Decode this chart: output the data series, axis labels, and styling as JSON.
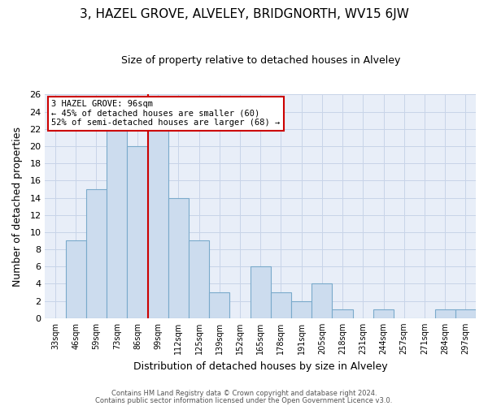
{
  "title": "3, HAZEL GROVE, ALVELEY, BRIDGNORTH, WV15 6JW",
  "subtitle": "Size of property relative to detached houses in Alveley",
  "xlabel": "Distribution of detached houses by size in Alveley",
  "ylabel": "Number of detached properties",
  "categories": [
    "33sqm",
    "46sqm",
    "59sqm",
    "73sqm",
    "86sqm",
    "99sqm",
    "112sqm",
    "125sqm",
    "139sqm",
    "152sqm",
    "165sqm",
    "178sqm",
    "191sqm",
    "205sqm",
    "218sqm",
    "231sqm",
    "244sqm",
    "257sqm",
    "271sqm",
    "284sqm",
    "297sqm"
  ],
  "values": [
    0,
    9,
    15,
    22,
    20,
    22,
    14,
    9,
    3,
    0,
    6,
    3,
    2,
    4,
    1,
    0,
    1,
    0,
    0,
    1,
    1
  ],
  "bar_color": "#ccdcee",
  "bar_edge_color": "#7aaacb",
  "vline_color": "#cc0000",
  "vline_index": 5,
  "annotation_title": "3 HAZEL GROVE: 96sqm",
  "annotation_line1": "← 45% of detached houses are smaller (60)",
  "annotation_line2": "52% of semi-detached houses are larger (68) →",
  "annotation_box_color": "#cc0000",
  "ylim": [
    0,
    26
  ],
  "yticks": [
    0,
    2,
    4,
    6,
    8,
    10,
    12,
    14,
    16,
    18,
    20,
    22,
    24,
    26
  ],
  "grid_color": "#c8d4e8",
  "plot_bg_color": "#e8eef8",
  "fig_bg_color": "#ffffff",
  "footer1": "Contains HM Land Registry data © Crown copyright and database right 2024.",
  "footer2": "Contains public sector information licensed under the Open Government Licence v3.0."
}
